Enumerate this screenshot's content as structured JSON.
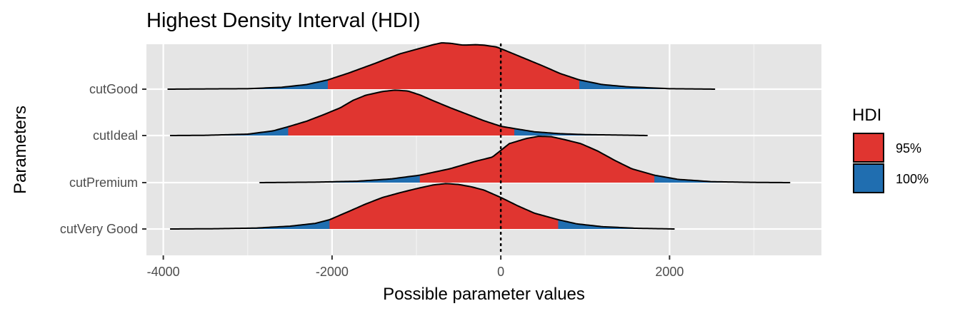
{
  "chart_data": {
    "type": "ridgeline",
    "title": "Highest Density Interval (HDI)",
    "xlabel": "Possible parameter values",
    "ylabel": "Parameters",
    "xlim": [
      -4200,
      3800
    ],
    "x_ticks": [
      -4000,
      -2000,
      0,
      2000
    ],
    "x_tick_labels": [
      "-4000",
      "-2000",
      "0",
      "2000"
    ],
    "x_minor_ticks": [
      -3000,
      -1000,
      1000,
      3000
    ],
    "reference_line": {
      "x": 0,
      "style": "dotted"
    },
    "grid": true,
    "legend": {
      "title": "HDI",
      "position": "right",
      "entries": [
        {
          "label": "95%",
          "color": "#e03530"
        },
        {
          "label": "100%",
          "color": "#206eb0"
        }
      ]
    },
    "categories": [
      "cutGood",
      "cutIdeal",
      "cutPremium",
      "cutVery Good"
    ],
    "series": [
      {
        "name": "cutGood",
        "range": [
          -3950,
          2540
        ],
        "hdi95": [
          -2050,
          930
        ],
        "density": [
          [
            -3950,
            0.0
          ],
          [
            -3500,
            0.005
          ],
          [
            -3000,
            0.01
          ],
          [
            -2600,
            0.04
          ],
          [
            -2300,
            0.1
          ],
          [
            -2050,
            0.2
          ],
          [
            -1800,
            0.35
          ],
          [
            -1500,
            0.55
          ],
          [
            -1200,
            0.76
          ],
          [
            -1000,
            0.86
          ],
          [
            -800,
            0.96
          ],
          [
            -700,
            1.0
          ],
          [
            -600,
            0.99
          ],
          [
            -450,
            0.95
          ],
          [
            -300,
            0.96
          ],
          [
            -200,
            0.95
          ],
          [
            -50,
            0.91
          ],
          [
            100,
            0.8
          ],
          [
            300,
            0.65
          ],
          [
            500,
            0.5
          ],
          [
            700,
            0.34
          ],
          [
            930,
            0.2
          ],
          [
            1200,
            0.1
          ],
          [
            1500,
            0.05
          ],
          [
            2000,
            0.01
          ],
          [
            2540,
            0.0
          ]
        ]
      },
      {
        "name": "cutIdeal",
        "range": [
          -3920,
          1740
        ],
        "hdi95": [
          -2520,
          160
        ],
        "density": [
          [
            -3920,
            0.0
          ],
          [
            -3500,
            0.005
          ],
          [
            -3000,
            0.03
          ],
          [
            -2700,
            0.1
          ],
          [
            -2520,
            0.19
          ],
          [
            -2300,
            0.31
          ],
          [
            -2100,
            0.45
          ],
          [
            -1900,
            0.6
          ],
          [
            -1750,
            0.76
          ],
          [
            -1600,
            0.87
          ],
          [
            -1400,
            0.95
          ],
          [
            -1250,
            0.98
          ],
          [
            -1100,
            0.96
          ],
          [
            -950,
            0.87
          ],
          [
            -800,
            0.75
          ],
          [
            -600,
            0.6
          ],
          [
            -400,
            0.46
          ],
          [
            -200,
            0.32
          ],
          [
            0,
            0.2
          ],
          [
            160,
            0.15
          ],
          [
            400,
            0.08
          ],
          [
            700,
            0.04
          ],
          [
            1000,
            0.02
          ],
          [
            1400,
            0.01
          ],
          [
            1740,
            0.0
          ]
        ]
      },
      {
        "name": "cutPremium",
        "range": [
          -2860,
          3430
        ],
        "hdi95": [
          -960,
          1820
        ],
        "density": [
          [
            -2860,
            0.0
          ],
          [
            -2200,
            0.01
          ],
          [
            -1700,
            0.03
          ],
          [
            -1300,
            0.08
          ],
          [
            -960,
            0.16
          ],
          [
            -600,
            0.3
          ],
          [
            -300,
            0.46
          ],
          [
            -100,
            0.55
          ],
          [
            100,
            0.84
          ],
          [
            300,
            0.95
          ],
          [
            450,
            1.0
          ],
          [
            600,
            0.99
          ],
          [
            750,
            0.93
          ],
          [
            950,
            0.84
          ],
          [
            1150,
            0.68
          ],
          [
            1350,
            0.48
          ],
          [
            1550,
            0.3
          ],
          [
            1820,
            0.16
          ],
          [
            2100,
            0.07
          ],
          [
            2500,
            0.02
          ],
          [
            3000,
            0.005
          ],
          [
            3430,
            0.0
          ]
        ]
      },
      {
        "name": "cutVery Good",
        "range": [
          -3920,
          2060
        ],
        "hdi95": [
          -2030,
          680
        ],
        "density": [
          [
            -3920,
            0.0
          ],
          [
            -3400,
            0.005
          ],
          [
            -2900,
            0.02
          ],
          [
            -2500,
            0.06
          ],
          [
            -2200,
            0.12
          ],
          [
            -2030,
            0.2
          ],
          [
            -1800,
            0.38
          ],
          [
            -1600,
            0.54
          ],
          [
            -1400,
            0.68
          ],
          [
            -1200,
            0.78
          ],
          [
            -1000,
            0.87
          ],
          [
            -800,
            0.95
          ],
          [
            -650,
            0.98
          ],
          [
            -500,
            0.96
          ],
          [
            -350,
            0.91
          ],
          [
            -200,
            0.84
          ],
          [
            0,
            0.68
          ],
          [
            200,
            0.5
          ],
          [
            400,
            0.34
          ],
          [
            680,
            0.2
          ],
          [
            900,
            0.11
          ],
          [
            1200,
            0.05
          ],
          [
            1600,
            0.015
          ],
          [
            2060,
            0.0
          ]
        ]
      }
    ]
  }
}
